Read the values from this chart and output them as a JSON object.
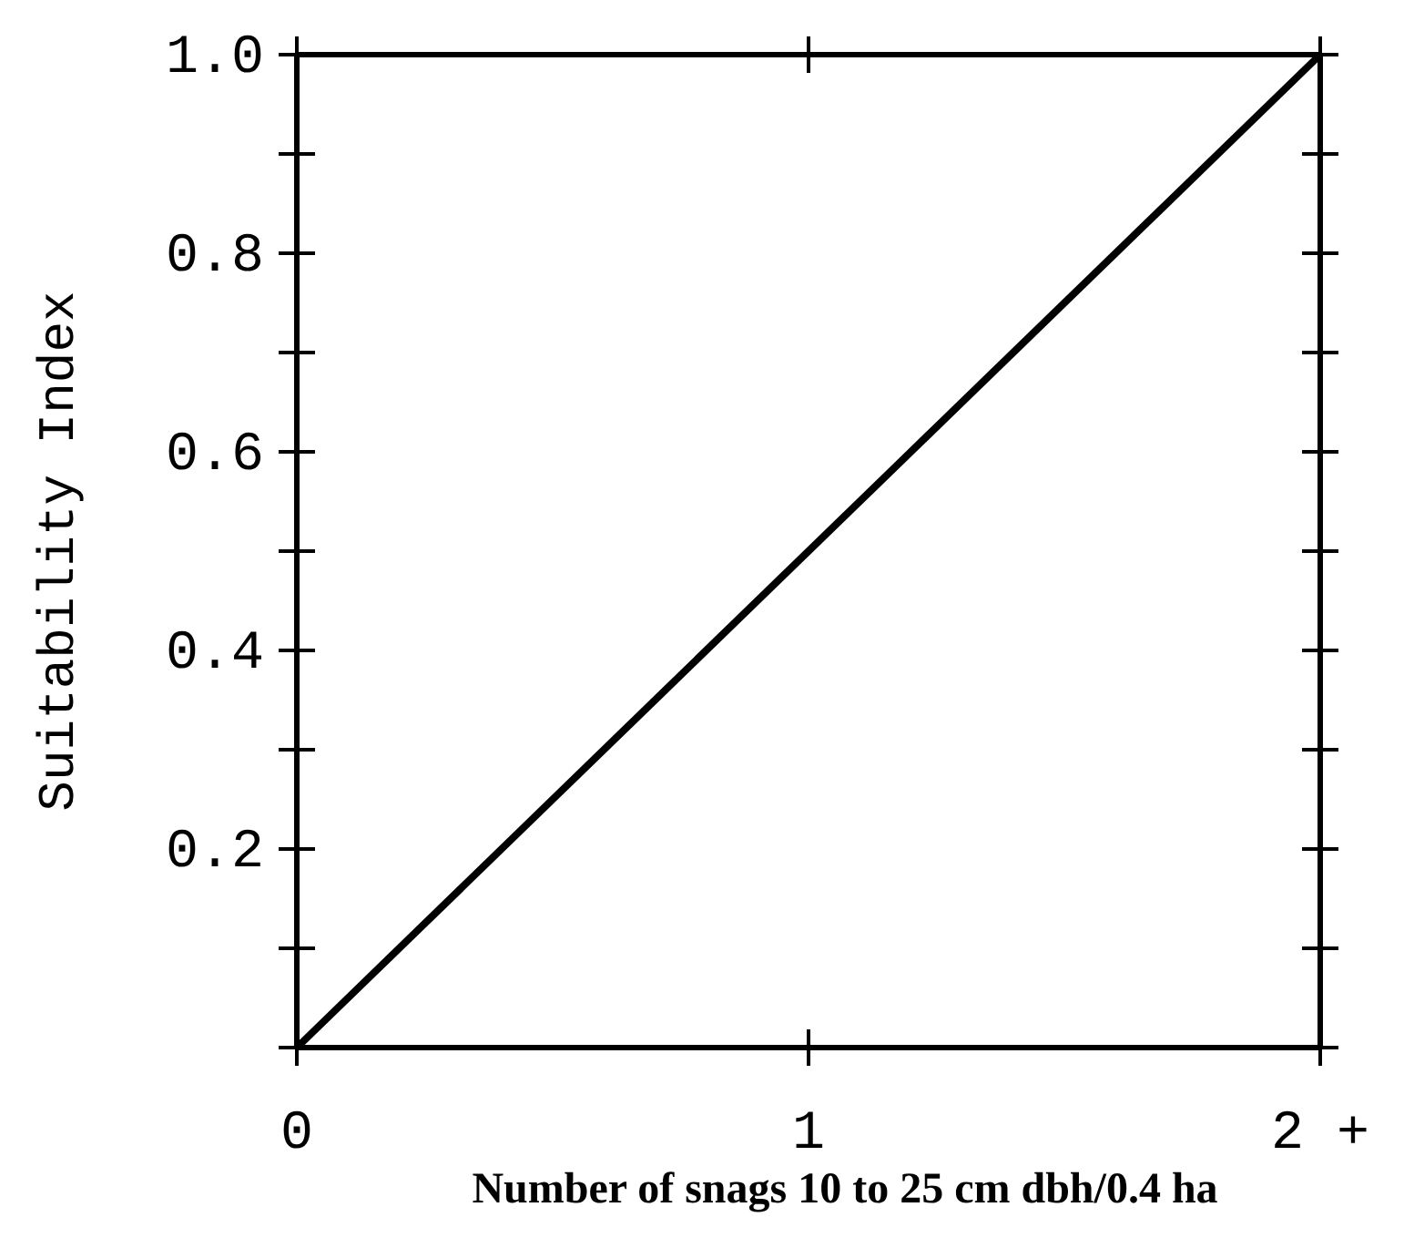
{
  "chart_data": {
    "type": "line",
    "x": [
      0,
      2
    ],
    "values": [
      0,
      1
    ],
    "color": "#000000",
    "xlim": [
      0,
      2
    ],
    "ylim": [
      0,
      1
    ],
    "xticks": [
      0,
      1,
      {
        "value": 2,
        "label": "2 +"
      }
    ],
    "yticks": [
      {
        "value": 0,
        "label": null
      },
      {
        "value": 0.1,
        "label": null
      },
      0.2,
      {
        "value": 0.3,
        "label": null
      },
      0.4,
      {
        "value": 0.5,
        "label": null
      },
      0.6,
      {
        "value": 0.7,
        "label": null
      },
      0.8,
      {
        "value": 0.9,
        "label": null
      },
      {
        "value": 1,
        "label": "1.0"
      }
    ],
    "xlabel": "Number of snags 10 to 25 cm dbh/0.4 ha",
    "ylabel": "Suitability Index",
    "grid": false,
    "line_style": "solid"
  }
}
